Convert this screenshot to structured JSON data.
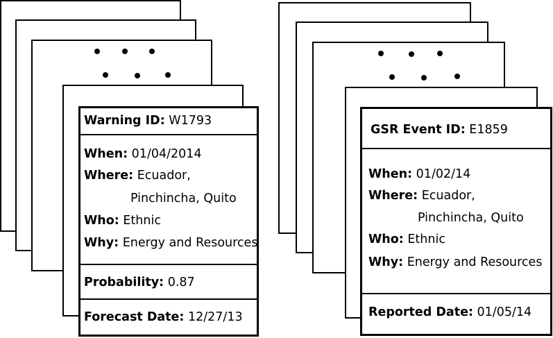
{
  "warning": {
    "id_label": "Warning ID:",
    "id_value": "W1793",
    "when_label": "When:",
    "when_value": "01/04/2014",
    "where_label": "Where:",
    "where_line1": "Ecuador,",
    "where_line2": "Pinchincha, Quito",
    "who_label": "Who:",
    "who_value": "Ethnic",
    "why_label": "Why:",
    "why_value": "Energy and Resources",
    "probability_label": "Probability:",
    "probability_value": "0.87",
    "forecast_label": "Forecast Date:",
    "forecast_value": "12/27/13"
  },
  "event": {
    "id_label": "GSR Event ID:",
    "id_value": "E1859",
    "when_label": "When:",
    "when_value": "01/02/14",
    "where_label": "Where:",
    "where_line1": "Ecuador,",
    "where_line2": "Pinchincha, Quito",
    "who_label": "Who:",
    "who_value": "Ethnic",
    "why_label": "Why:",
    "why_value": "Energy and Resources",
    "reported_label": "Reported Date:",
    "reported_value": "01/05/14"
  }
}
